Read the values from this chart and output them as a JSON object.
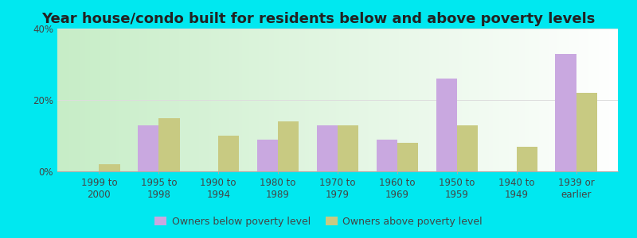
{
  "title": "Year house/condo built for residents below and above poverty levels",
  "categories": [
    "1999 to\n2000",
    "1995 to\n1998",
    "1990 to\n1994",
    "1980 to\n1989",
    "1970 to\n1979",
    "1960 to\n1969",
    "1950 to\n1959",
    "1940 to\n1949",
    "1939 or\nearlier"
  ],
  "below_poverty": [
    0.0,
    13.0,
    0.0,
    9.0,
    13.0,
    9.0,
    26.0,
    0.0,
    33.0
  ],
  "above_poverty": [
    2.0,
    15.0,
    10.0,
    14.0,
    13.0,
    8.0,
    13.0,
    7.0,
    22.0
  ],
  "below_color": "#c9a8e0",
  "above_color": "#c8ca82",
  "ylim": [
    0,
    40
  ],
  "yticks": [
    0,
    20,
    40
  ],
  "ytick_labels": [
    "0%",
    "20%",
    "40%"
  ],
  "outer_bg": "#00e8f0",
  "legend_below": "Owners below poverty level",
  "legend_above": "Owners above poverty level",
  "bar_width": 0.35,
  "title_fontsize": 13,
  "tick_fontsize": 8.5,
  "bg_colors": [
    "#c5e8c5",
    "#e8f5e5",
    "#f5fdf5",
    "#ffffff"
  ],
  "grid_color": "#dddddd"
}
